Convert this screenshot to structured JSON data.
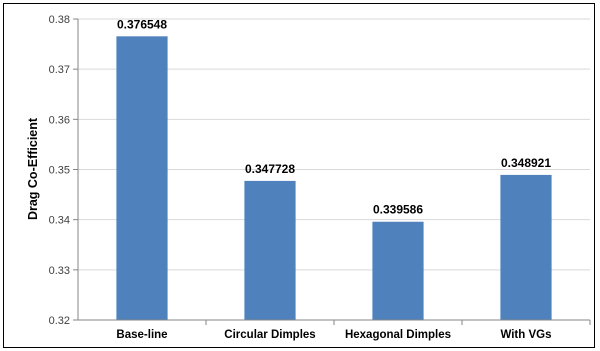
{
  "chart_data": {
    "type": "bar",
    "title": "",
    "xlabel": "",
    "ylabel": "Drag Co-Efficient",
    "categories": [
      "Base-line",
      "Circular Dimples",
      "Hexagonal Dimples",
      "With VGs"
    ],
    "values": [
      0.376548,
      0.347728,
      0.339586,
      0.348921
    ],
    "data_labels": [
      "0.376548",
      "0.347728",
      "0.339586",
      "0.348921"
    ],
    "ylim": [
      0.32,
      0.38
    ],
    "yticks": [
      "0.32",
      "0.33",
      "0.34",
      "0.35",
      "0.36",
      "0.37",
      "0.38"
    ],
    "grid": true,
    "legend": "none",
    "colors": {
      "bar": "#4f81bd",
      "grid": "#d9d9d9",
      "axis": "#868686"
    }
  }
}
